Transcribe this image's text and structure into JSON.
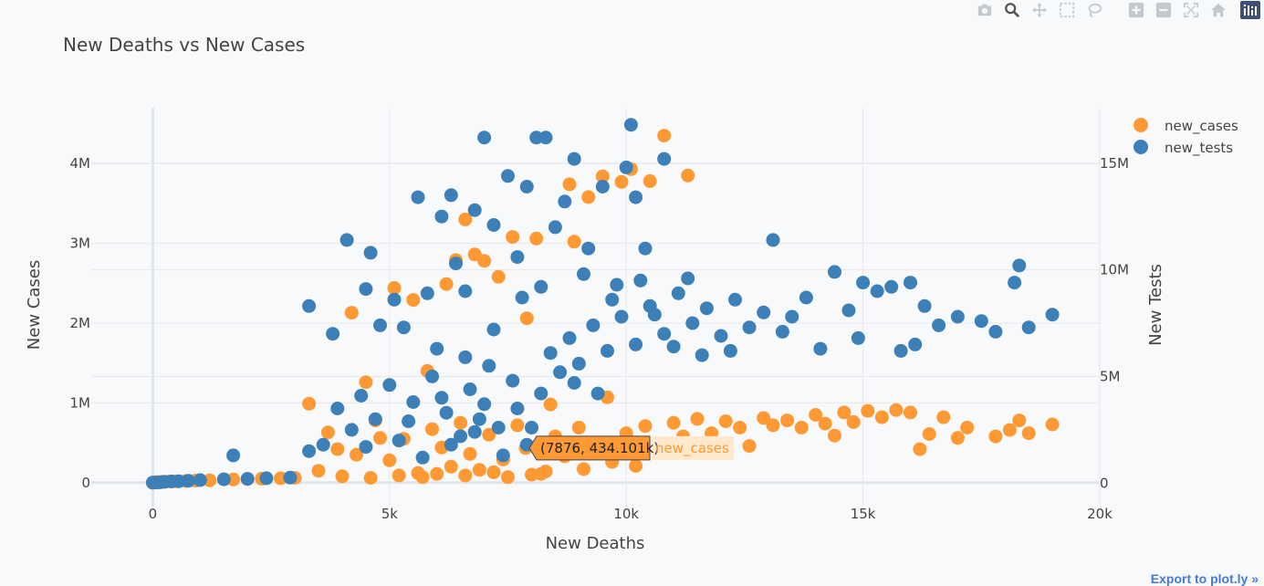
{
  "modebar": {
    "buttons": [
      {
        "name": "camera-icon"
      },
      {
        "name": "zoom-icon"
      },
      {
        "name": "pan-icon"
      },
      {
        "name": "box-select-icon"
      },
      {
        "name": "lasso-icon"
      },
      {
        "name": "zoom-in-icon"
      },
      {
        "name": "zoom-out-icon"
      },
      {
        "name": "autoscale-icon"
      },
      {
        "name": "home-icon"
      },
      {
        "name": "plotly-logo-icon"
      }
    ]
  },
  "export_link": "Export to plot.ly »",
  "hover": {
    "text": "(7876, 434.101k)",
    "series": "new_cases"
  },
  "colors": {
    "new_cases": "#ff9934",
    "new_tests": "#3d80b8"
  },
  "chart_data": {
    "type": "scatter",
    "title": "New Deaths vs New Cases",
    "xlabel": "New Deaths",
    "ylabel": "New Cases",
    "y2label": "New Tests",
    "xlim": [
      -1300,
      20000
    ],
    "ylim": [
      -300000,
      4700000
    ],
    "y2lim": [
      -1100000,
      17600000
    ],
    "xticks": [
      0,
      5000,
      10000,
      15000,
      20000
    ],
    "xtick_labels": [
      "0",
      "5k",
      "10k",
      "15k",
      "20k"
    ],
    "yticks": [
      0,
      1000000,
      2000000,
      3000000,
      4000000
    ],
    "ytick_labels": [
      "0",
      "1M",
      "2M",
      "3M",
      "4M"
    ],
    "y2ticks": [
      0,
      5000000,
      10000000,
      15000000
    ],
    "y2tick_labels": [
      "0",
      "5M",
      "10M",
      "15M"
    ],
    "grid": true,
    "legend_position": "top-right",
    "series": [
      {
        "name": "new_cases",
        "axis": "y",
        "points": [
          [
            0,
            0
          ],
          [
            50,
            5000
          ],
          [
            100,
            8000
          ],
          [
            200,
            12000
          ],
          [
            350,
            15000
          ],
          [
            500,
            18000
          ],
          [
            700,
            20000
          ],
          [
            900,
            25000
          ],
          [
            1200,
            30000
          ],
          [
            1700,
            40000
          ],
          [
            2000,
            45000
          ],
          [
            2300,
            50000
          ],
          [
            2700,
            55000
          ],
          [
            3000,
            60000
          ],
          [
            3300,
            990000
          ],
          [
            3700,
            630000
          ],
          [
            4200,
            2130000
          ],
          [
            4500,
            1260000
          ],
          [
            4800,
            560000
          ],
          [
            5100,
            2440000
          ],
          [
            5500,
            2290000
          ],
          [
            5800,
            1400000
          ],
          [
            6200,
            2490000
          ],
          [
            6400,
            2790000
          ],
          [
            6600,
            3300000
          ],
          [
            6800,
            2860000
          ],
          [
            7000,
            2780000
          ],
          [
            7300,
            2580000
          ],
          [
            7600,
            3080000
          ],
          [
            7900,
            2060000
          ],
          [
            8100,
            3060000
          ],
          [
            8400,
            980000
          ],
          [
            8800,
            3740000
          ],
          [
            8900,
            3020000
          ],
          [
            9200,
            3580000
          ],
          [
            9500,
            3840000
          ],
          [
            9600,
            1070000
          ],
          [
            9900,
            3770000
          ],
          [
            10100,
            3930000
          ],
          [
            10500,
            3780000
          ],
          [
            10800,
            4350000
          ],
          [
            11300,
            3850000
          ],
          [
            3500,
            150000
          ],
          [
            3900,
            420000
          ],
          [
            4300,
            350000
          ],
          [
            4700,
            780000
          ],
          [
            5000,
            280000
          ],
          [
            5300,
            550000
          ],
          [
            5600,
            120000
          ],
          [
            5900,
            670000
          ],
          [
            6100,
            440000
          ],
          [
            6300,
            200000
          ],
          [
            6500,
            750000
          ],
          [
            6700,
            360000
          ],
          [
            6900,
            160000
          ],
          [
            7100,
            600000
          ],
          [
            7400,
            290000
          ],
          [
            7700,
            720000
          ],
          [
            7876,
            434101
          ],
          [
            8200,
            110000
          ],
          [
            8500,
            580000
          ],
          [
            8700,
            330000
          ],
          [
            9000,
            690000
          ],
          [
            9300,
            480000
          ],
          [
            9700,
            260000
          ],
          [
            10000,
            620000
          ],
          [
            10400,
            710000
          ],
          [
            10700,
            390000
          ],
          [
            11000,
            750000
          ],
          [
            11200,
            580000
          ],
          [
            11500,
            800000
          ],
          [
            11800,
            620000
          ],
          [
            12100,
            770000
          ],
          [
            12400,
            690000
          ],
          [
            12600,
            460000
          ],
          [
            12900,
            810000
          ],
          [
            13100,
            720000
          ],
          [
            13400,
            780000
          ],
          [
            13700,
            690000
          ],
          [
            14000,
            850000
          ],
          [
            14200,
            740000
          ],
          [
            14400,
            590000
          ],
          [
            14600,
            880000
          ],
          [
            14800,
            760000
          ],
          [
            15100,
            900000
          ],
          [
            15400,
            820000
          ],
          [
            15700,
            910000
          ],
          [
            16000,
            880000
          ],
          [
            16200,
            420000
          ],
          [
            16400,
            610000
          ],
          [
            16700,
            820000
          ],
          [
            17000,
            560000
          ],
          [
            17200,
            690000
          ],
          [
            17800,
            580000
          ],
          [
            18100,
            660000
          ],
          [
            18300,
            780000
          ],
          [
            18500,
            620000
          ],
          [
            19000,
            730000
          ],
          [
            4000,
            80000
          ],
          [
            4600,
            60000
          ],
          [
            5200,
            90000
          ],
          [
            5700,
            70000
          ],
          [
            6000,
            110000
          ],
          [
            6600,
            90000
          ],
          [
            7200,
            130000
          ],
          [
            7500,
            70000
          ],
          [
            8000,
            100000
          ],
          [
            8300,
            140000
          ],
          [
            9100,
            170000
          ],
          [
            10200,
            210000
          ]
        ]
      },
      {
        "name": "new_tests",
        "axis": "y2",
        "points": [
          [
            0,
            20000
          ],
          [
            80,
            30000
          ],
          [
            150,
            40000
          ],
          [
            250,
            60000
          ],
          [
            400,
            80000
          ],
          [
            550,
            90000
          ],
          [
            750,
            110000
          ],
          [
            1000,
            140000
          ],
          [
            1700,
            1300000
          ],
          [
            1500,
            180000
          ],
          [
            2000,
            200000
          ],
          [
            2400,
            230000
          ],
          [
            2900,
            260000
          ],
          [
            3300,
            8300000
          ],
          [
            3300,
            1500000
          ],
          [
            3800,
            7000000
          ],
          [
            4100,
            11400000
          ],
          [
            4500,
            9100000
          ],
          [
            4600,
            10800000
          ],
          [
            4800,
            7400000
          ],
          [
            5100,
            8600000
          ],
          [
            5300,
            7300000
          ],
          [
            5600,
            13400000
          ],
          [
            5800,
            8900000
          ],
          [
            6100,
            12500000
          ],
          [
            6300,
            13500000
          ],
          [
            6400,
            10300000
          ],
          [
            6600,
            9000000
          ],
          [
            6800,
            12800000
          ],
          [
            7000,
            16200000
          ],
          [
            7200,
            12100000
          ],
          [
            7500,
            14400000
          ],
          [
            7700,
            10600000
          ],
          [
            7900,
            13900000
          ],
          [
            8100,
            16200000
          ],
          [
            8300,
            16200000
          ],
          [
            8500,
            12000000
          ],
          [
            8700,
            13200000
          ],
          [
            8900,
            15200000
          ],
          [
            9200,
            11000000
          ],
          [
            9500,
            13900000
          ],
          [
            9800,
            9300000
          ],
          [
            10000,
            14800000
          ],
          [
            10100,
            16800000
          ],
          [
            10200,
            13400000
          ],
          [
            10400,
            11000000
          ],
          [
            10800,
            15200000
          ],
          [
            11300,
            9600000
          ],
          [
            3600,
            1800000
          ],
          [
            3900,
            3500000
          ],
          [
            4200,
            2500000
          ],
          [
            4400,
            4100000
          ],
          [
            4700,
            3000000
          ],
          [
            5000,
            4600000
          ],
          [
            5200,
            2000000
          ],
          [
            5500,
            3800000
          ],
          [
            5700,
            1200000
          ],
          [
            5900,
            5000000
          ],
          [
            6200,
            3300000
          ],
          [
            6500,
            2200000
          ],
          [
            6700,
            4400000
          ],
          [
            6900,
            3000000
          ],
          [
            7100,
            5500000
          ],
          [
            7300,
            2600000
          ],
          [
            7600,
            4800000
          ],
          [
            7900,
            1800000
          ],
          [
            8200,
            4200000
          ],
          [
            8400,
            6100000
          ],
          [
            8600,
            5200000
          ],
          [
            8800,
            6800000
          ],
          [
            9000,
            5600000
          ],
          [
            9300,
            7400000
          ],
          [
            9600,
            6200000
          ],
          [
            9900,
            7800000
          ],
          [
            10200,
            6500000
          ],
          [
            10500,
            8300000
          ],
          [
            10800,
            7000000
          ],
          [
            11100,
            8900000
          ],
          [
            11400,
            7500000
          ],
          [
            11700,
            8200000
          ],
          [
            12000,
            6900000
          ],
          [
            12300,
            8600000
          ],
          [
            12600,
            7300000
          ],
          [
            12900,
            8000000
          ],
          [
            13100,
            11400000
          ],
          [
            13300,
            7100000
          ],
          [
            13500,
            7800000
          ],
          [
            13800,
            8700000
          ],
          [
            14100,
            6300000
          ],
          [
            14400,
            9900000
          ],
          [
            14700,
            8100000
          ],
          [
            15000,
            9400000
          ],
          [
            15300,
            9000000
          ],
          [
            15600,
            9200000
          ],
          [
            16000,
            9400000
          ],
          [
            16300,
            8300000
          ],
          [
            16600,
            7400000
          ],
          [
            17000,
            7800000
          ],
          [
            17500,
            7600000
          ],
          [
            17800,
            7100000
          ],
          [
            18200,
            9400000
          ],
          [
            18300,
            10200000
          ],
          [
            18500,
            7300000
          ],
          [
            19000,
            7900000
          ],
          [
            16100,
            6500000
          ],
          [
            15800,
            6200000
          ],
          [
            14900,
            6800000
          ],
          [
            6000,
            6300000
          ],
          [
            6600,
            5900000
          ],
          [
            7200,
            7200000
          ],
          [
            7800,
            8700000
          ],
          [
            8200,
            9200000
          ],
          [
            9100,
            9800000
          ],
          [
            9700,
            8600000
          ],
          [
            10300,
            9500000
          ],
          [
            10600,
            7900000
          ],
          [
            11000,
            6400000
          ],
          [
            11600,
            6000000
          ],
          [
            12200,
            6200000
          ],
          [
            6300,
            1800000
          ],
          [
            6800,
            2400000
          ],
          [
            7400,
            1300000
          ],
          [
            8000,
            2600000
          ],
          [
            8600,
            1400000
          ],
          [
            4500,
            1700000
          ],
          [
            5400,
            2900000
          ],
          [
            6100,
            4000000
          ],
          [
            7000,
            3700000
          ],
          [
            7700,
            3500000
          ],
          [
            8900,
            4700000
          ],
          [
            9400,
            4200000
          ]
        ]
      }
    ]
  }
}
